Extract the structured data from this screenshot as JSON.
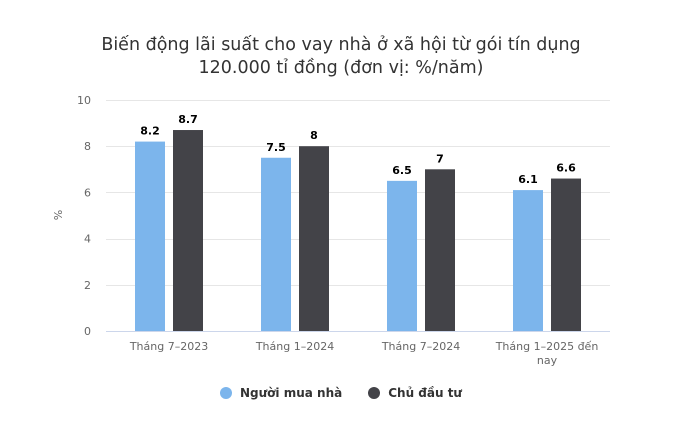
{
  "chart_data": {
    "type": "bar",
    "title_line1": "Biến động lãi suất cho vay nhà ở xã hội từ gói tín dụng",
    "title_line2": "120.000 tỉ đồng (đơn vị: %/năm)",
    "ylabel": "%",
    "ylim": [
      0,
      10
    ],
    "yticks": [
      0,
      2,
      4,
      6,
      8,
      10
    ],
    "grid": true,
    "legend_position": "bottom",
    "categories": [
      "Tháng 7–2023",
      "Tháng 1–2024",
      "Tháng 7–2024",
      "Tháng 1–2025 đến nay"
    ],
    "series": [
      {
        "name": "Người mua nhà",
        "color": "#7cb5ec",
        "values": [
          8.2,
          7.5,
          6.5,
          6.1
        ],
        "labels": [
          "8.2",
          "7.5",
          "6.5",
          "6.1"
        ]
      },
      {
        "name": "Chủ đầu tư",
        "color": "#434348",
        "values": [
          8.7,
          8,
          7,
          6.6
        ],
        "labels": [
          "8.7",
          "8",
          "7",
          "6.6"
        ]
      }
    ]
  }
}
